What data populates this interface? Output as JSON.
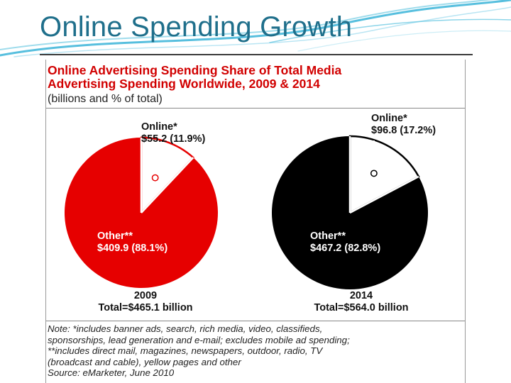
{
  "slide": {
    "title": "Online Spending Growth"
  },
  "colors": {
    "title": "#1f6f8b",
    "accent_red": "#e60000",
    "heading_red": "#d10000",
    "pie_2014": "#000000",
    "swoosh": "#39b4d8"
  },
  "chart_data": {
    "type": "pie",
    "title": "Online Advertising Spending Share of Total Media Advertising Spending Worldwide, 2009 & 2014",
    "title_lines": [
      "Online Advertising Spending Share of Total Media",
      "Advertising Spending Worldwide, 2009 & 2014"
    ],
    "subtitle": "(billions and % of total)",
    "charts": [
      {
        "year": "2009",
        "total_label": "Total=$465.1 billion",
        "color": "#e60000",
        "slices": [
          {
            "name": "Online*",
            "value": 55.2,
            "percent": 11.9,
            "label": "$55.2 (11.9%)"
          },
          {
            "name": "Other**",
            "value": 409.9,
            "percent": 88.1,
            "label": "$409.9 (88.1%)"
          }
        ]
      },
      {
        "year": "2014",
        "total_label": "Total=$564.0 billion",
        "color": "#000000",
        "slices": [
          {
            "name": "Online*",
            "value": 96.8,
            "percent": 17.2,
            "label": "$96.8 (17.2%)"
          },
          {
            "name": "Other**",
            "value": 467.2,
            "percent": 82.8,
            "label": "$467.2 (82.8%)"
          }
        ]
      }
    ],
    "notes": [
      "Note: *includes banner ads, search, rich media, video, classifieds,",
      "sponsorships, lead generation and e-mail; excludes mobile ad spending;",
      "**includes direct mail, magazines, newspapers, outdoor, radio, TV",
      "(broadcast and cable), yellow pages and other",
      "Source: eMarketer, June 2010"
    ]
  }
}
